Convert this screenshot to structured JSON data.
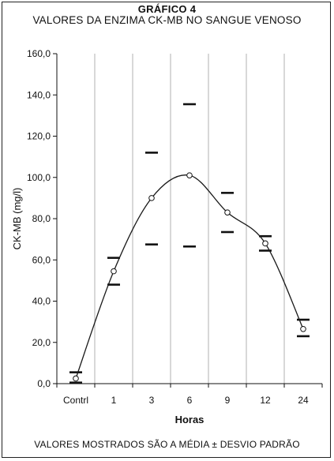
{
  "header": {
    "title": "GRÁFICO 4",
    "subtitle": "VALORES DA ENZIMA CK-MB NO SANGUE VENOSO"
  },
  "footnote": "VALORES MOSTRADOS SÃO A MÉDIA ± DESVIO PADRÃO",
  "chart_data": {
    "type": "line",
    "title": "GRÁFICO 4",
    "subtitle": "VALORES DA ENZIMA CK-MB NO SANGUE VENOSO",
    "xlabel": "Horas",
    "ylabel": "CK-MB (mg/l)",
    "ylim": [
      0,
      160
    ],
    "yticks": [
      0,
      20,
      40,
      60,
      80,
      100,
      120,
      140,
      160
    ],
    "ytick_labels": [
      "0,0",
      "20,0",
      "40,0",
      "60,0",
      "80,0",
      "100,0",
      "120,0",
      "140,0",
      "160,0"
    ],
    "categories": [
      "Contrl",
      "1",
      "3",
      "6",
      "9",
      "12",
      "24"
    ],
    "grid": "vertical",
    "series": [
      {
        "mean": [
          2.5,
          54.5,
          90.0,
          101.0,
          83.0,
          68.0,
          26.5
        ],
        "upper": [
          5.5,
          61.0,
          112.0,
          135.5,
          92.5,
          71.5,
          31.0
        ],
        "lower": [
          0.5,
          48.0,
          67.5,
          66.5,
          73.5,
          64.5,
          23.0
        ]
      }
    ],
    "colors": {
      "line": "#1a1a1a",
      "grid": "#b0b0b0",
      "marker_fill": "#ffffff"
    }
  }
}
